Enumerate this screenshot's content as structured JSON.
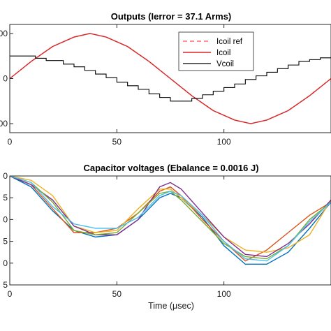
{
  "chart_data": [
    {
      "type": "line",
      "title": "Outputs (Ierror = 37.1 Arms)",
      "xlabel": "",
      "ylabel": "",
      "xlim": [
        0,
        150
      ],
      "xticks": [
        0,
        50,
        100
      ],
      "ylim": [
        -1.2,
        1.2
      ],
      "yticks": [
        -1,
        0,
        1
      ],
      "ytick_labels": [
        "00",
        "0",
        "00"
      ],
      "legend": {
        "position": "top-right",
        "entries": [
          "Icoil ref",
          "Icoil",
          "Vcoil"
        ]
      },
      "series": [
        {
          "name": "Icoil ref",
          "style": "dashed",
          "color": "#ff6b6b",
          "x": [
            0,
            10,
            20,
            30,
            37.5,
            45,
            55,
            65,
            75,
            85,
            95,
            105,
            112.5,
            120,
            130,
            140,
            150
          ],
          "y": [
            0,
            0.38,
            0.71,
            0.92,
            1.0,
            0.92,
            0.71,
            0.38,
            0,
            -0.38,
            -0.71,
            -0.92,
            -1.0,
            -0.92,
            -0.71,
            -0.38,
            0
          ]
        },
        {
          "name": "Icoil",
          "style": "solid",
          "color": "#d62728",
          "x": [
            0,
            10,
            20,
            30,
            37.5,
            45,
            55,
            65,
            75,
            85,
            95,
            105,
            112.5,
            120,
            130,
            140,
            150
          ],
          "y": [
            0,
            0.38,
            0.71,
            0.92,
            1.0,
            0.92,
            0.71,
            0.38,
            0,
            -0.38,
            -0.71,
            -0.92,
            -1.0,
            -0.92,
            -0.71,
            -0.38,
            0
          ]
        },
        {
          "name": "Vcoil",
          "style": "step",
          "color": "#000000",
          "x": [
            0,
            7,
            12,
            17,
            25,
            30,
            35,
            40,
            45,
            50,
            55,
            60,
            65,
            70,
            75,
            80,
            85,
            90,
            95,
            100,
            105,
            110,
            115,
            120,
            125,
            130,
            135,
            140,
            145,
            150
          ],
          "y": [
            0.5,
            0.5,
            0.45,
            0.4,
            0.32,
            0.26,
            0.18,
            0.1,
            0.02,
            -0.08,
            -0.16,
            -0.24,
            -0.34,
            -0.42,
            -0.5,
            -0.5,
            -0.44,
            -0.36,
            -0.28,
            -0.2,
            -0.12,
            -0.02,
            0.06,
            0.14,
            0.22,
            0.3,
            0.38,
            0.42,
            0.46,
            0.5
          ]
        }
      ]
    },
    {
      "type": "line",
      "title": "Capacitor voltages (Ebalance = 0.0016 J)",
      "xlabel": "Time (μsec)",
      "ylabel": "",
      "xlim": [
        0,
        150
      ],
      "xticks": [
        0,
        50,
        100
      ],
      "ylim": [
        0,
        5
      ],
      "yticks": [
        0,
        1,
        2,
        3,
        4,
        5
      ],
      "ytick_labels": [
        "5",
        "0",
        "5",
        "0",
        "5",
        "0"
      ],
      "series": [
        {
          "color": "#0072bd",
          "x": [
            0,
            10,
            20,
            30,
            40,
            50,
            60,
            70,
            75,
            80,
            90,
            100,
            110,
            120,
            130,
            140,
            150
          ],
          "y": [
            5,
            4.5,
            3.4,
            2.5,
            2.2,
            2.3,
            3.0,
            4.0,
            4.2,
            4.0,
            3.1,
            1.8,
            0.95,
            0.95,
            1.5,
            2.6,
            3.8
          ]
        },
        {
          "color": "#d95319",
          "x": [
            0,
            10,
            20,
            30,
            40,
            50,
            60,
            70,
            75,
            80,
            90,
            100,
            110,
            120,
            130,
            140,
            150
          ],
          "y": [
            5,
            4.6,
            3.5,
            2.4,
            2.4,
            2.6,
            3.3,
            4.3,
            4.5,
            4.1,
            3.0,
            2.0,
            1.1,
            1.6,
            2.4,
            3.2,
            3.8
          ]
        },
        {
          "color": "#edb120",
          "x": [
            0,
            10,
            20,
            30,
            40,
            50,
            60,
            70,
            75,
            80,
            90,
            100,
            110,
            120,
            130,
            140,
            150
          ],
          "y": [
            5,
            4.8,
            4.1,
            2.7,
            2.4,
            2.5,
            3.5,
            4.4,
            4.4,
            4.0,
            3.2,
            2.2,
            1.6,
            1.5,
            1.7,
            2.3,
            3.9
          ]
        },
        {
          "color": "#7e2f8e",
          "x": [
            0,
            10,
            20,
            30,
            40,
            50,
            60,
            70,
            75,
            80,
            90,
            100,
            110,
            120,
            130,
            140,
            150
          ],
          "y": [
            5,
            4.6,
            3.9,
            2.7,
            2.3,
            2.3,
            3.0,
            4.5,
            4.7,
            4.4,
            3.3,
            2.2,
            1.4,
            1.3,
            1.9,
            2.8,
            3.9
          ]
        },
        {
          "color": "#77ac30",
          "x": [
            0,
            10,
            20,
            30,
            40,
            50,
            60,
            70,
            75,
            80,
            90,
            100,
            110,
            120,
            130,
            140,
            150
          ],
          "y": [
            5,
            4.7,
            3.8,
            2.5,
            2.3,
            2.4,
            3.3,
            4.2,
            4.3,
            3.9,
            2.9,
            1.9,
            1.3,
            1.2,
            1.8,
            3.0,
            3.8
          ]
        },
        {
          "color": "#4dbeee",
          "x": [
            0,
            10,
            20,
            30,
            40,
            50,
            60,
            70,
            75,
            80,
            90,
            100,
            110,
            120,
            130,
            140,
            150
          ],
          "y": [
            5,
            4.7,
            3.6,
            2.8,
            2.6,
            2.6,
            3.1,
            4.1,
            4.3,
            4.1,
            3.2,
            2.0,
            1.2,
            1.1,
            1.8,
            2.9,
            3.8
          ]
        }
      ]
    }
  ]
}
